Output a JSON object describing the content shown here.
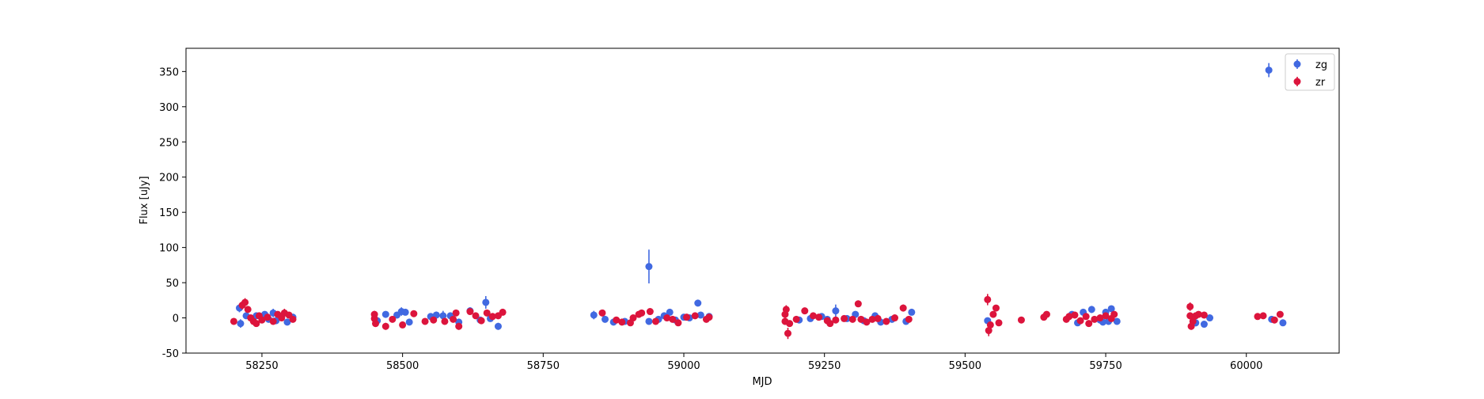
{
  "chart_data": {
    "type": "scatter",
    "title": "",
    "xlabel": "MJD",
    "ylabel": "Flux [uJy]",
    "xlim": [
      58115,
      60165
    ],
    "ylim": [
      -50,
      383
    ],
    "x_ticks": [
      58250,
      58500,
      58750,
      59000,
      59250,
      59500,
      59750,
      60000
    ],
    "y_ticks": [
      -50,
      0,
      50,
      100,
      150,
      200,
      250,
      300,
      350
    ],
    "grid": false,
    "legend_position": "top-right",
    "series": [
      {
        "name": "zg",
        "color": "#4169e1",
        "points": [
          [
            58210,
            14,
            6
          ],
          [
            58212,
            -8,
            6
          ],
          [
            58222,
            3,
            3
          ],
          [
            58240,
            3,
            3
          ],
          [
            58255,
            5,
            3
          ],
          [
            58262,
            -2,
            3
          ],
          [
            58270,
            7,
            6
          ],
          [
            58275,
            -4,
            4
          ],
          [
            58285,
            2,
            3
          ],
          [
            58295,
            -6,
            4
          ],
          [
            58305,
            1,
            3
          ],
          [
            58455,
            -4,
            5
          ],
          [
            58470,
            5,
            4
          ],
          [
            58490,
            4,
            4
          ],
          [
            58498,
            9,
            6
          ],
          [
            58505,
            8,
            4
          ],
          [
            58512,
            -6,
            4
          ],
          [
            58550,
            2,
            3
          ],
          [
            58560,
            4,
            5
          ],
          [
            58572,
            3,
            7
          ],
          [
            58585,
            3,
            4
          ],
          [
            58600,
            -6,
            4
          ],
          [
            58620,
            10,
            5
          ],
          [
            58638,
            -3,
            4
          ],
          [
            58648,
            22,
            9
          ],
          [
            58656,
            -1,
            4
          ],
          [
            58670,
            -12,
            5
          ],
          [
            58840,
            4,
            6
          ],
          [
            58860,
            -2,
            3
          ],
          [
            58875,
            -6,
            3
          ],
          [
            58895,
            -5,
            3
          ],
          [
            58938,
            73,
            24
          ],
          [
            58938,
            -5,
            4
          ],
          [
            58955,
            -2,
            3
          ],
          [
            58965,
            3,
            3
          ],
          [
            58975,
            8,
            4
          ],
          [
            58985,
            -3,
            3
          ],
          [
            59000,
            1,
            3
          ],
          [
            59010,
            0,
            3
          ],
          [
            59025,
            21,
            4
          ],
          [
            59030,
            4,
            3
          ],
          [
            59045,
            2,
            3
          ],
          [
            59205,
            -3,
            3
          ],
          [
            59225,
            -1,
            3
          ],
          [
            59245,
            2,
            3
          ],
          [
            59255,
            -2,
            3
          ],
          [
            59270,
            10,
            9
          ],
          [
            59290,
            -1,
            3
          ],
          [
            59305,
            5,
            3
          ],
          [
            59320,
            -4,
            3
          ],
          [
            59340,
            3,
            3
          ],
          [
            59350,
            -6,
            3
          ],
          [
            59370,
            -2,
            3
          ],
          [
            59395,
            -5,
            4
          ],
          [
            59405,
            8,
            3
          ],
          [
            59540,
            -4,
            4
          ],
          [
            59690,
            5,
            3
          ],
          [
            59700,
            -7,
            4
          ],
          [
            59710,
            8,
            4
          ],
          [
            59725,
            12,
            5
          ],
          [
            59740,
            -3,
            4
          ],
          [
            59745,
            -6,
            4
          ],
          [
            59750,
            8,
            4
          ],
          [
            59755,
            -5,
            4
          ],
          [
            59760,
            13,
            4
          ],
          [
            59770,
            -5,
            4
          ],
          [
            59910,
            -7,
            5
          ],
          [
            59925,
            -9,
            4
          ],
          [
            59935,
            0,
            3
          ],
          [
            60040,
            352,
            10
          ],
          [
            60045,
            -2,
            3
          ],
          [
            60065,
            -7,
            4
          ]
        ]
      },
      {
        "name": "zr",
        "color": "#dc143c",
        "points": [
          [
            58200,
            -5,
            3
          ],
          [
            58215,
            18,
            6
          ],
          [
            58220,
            22,
            6
          ],
          [
            58225,
            12,
            4
          ],
          [
            58230,
            0,
            3
          ],
          [
            58235,
            -5,
            3
          ],
          [
            58240,
            -8,
            3
          ],
          [
            58245,
            3,
            3
          ],
          [
            58250,
            -3,
            3
          ],
          [
            58260,
            1,
            3
          ],
          [
            58270,
            -5,
            3
          ],
          [
            58278,
            5,
            3
          ],
          [
            58285,
            0,
            3
          ],
          [
            58290,
            7,
            6
          ],
          [
            58298,
            4,
            3
          ],
          [
            58305,
            -2,
            3
          ],
          [
            58450,
            5,
            5
          ],
          [
            58450,
            -1,
            5
          ],
          [
            58452,
            -8,
            5
          ],
          [
            58470,
            -12,
            5
          ],
          [
            58482,
            -2,
            3
          ],
          [
            58500,
            -10,
            4
          ],
          [
            58520,
            6,
            3
          ],
          [
            58540,
            -5,
            3
          ],
          [
            58555,
            -3,
            3
          ],
          [
            58575,
            -5,
            3
          ],
          [
            58590,
            -2,
            3
          ],
          [
            58595,
            7,
            4
          ],
          [
            58600,
            -12,
            5
          ],
          [
            58620,
            9,
            4
          ],
          [
            58630,
            3,
            3
          ],
          [
            58640,
            -4,
            3
          ],
          [
            58650,
            7,
            4
          ],
          [
            58660,
            2,
            3
          ],
          [
            58670,
            3,
            3
          ],
          [
            58678,
            8,
            4
          ],
          [
            58855,
            7,
            4
          ],
          [
            58880,
            -3,
            3
          ],
          [
            58890,
            -6,
            3
          ],
          [
            58905,
            -7,
            3
          ],
          [
            58910,
            0,
            3
          ],
          [
            58920,
            5,
            3
          ],
          [
            58925,
            7,
            3
          ],
          [
            58940,
            9,
            4
          ],
          [
            58950,
            -5,
            3
          ],
          [
            58970,
            0,
            3
          ],
          [
            58980,
            -2,
            3
          ],
          [
            58990,
            -7,
            3
          ],
          [
            59005,
            1,
            3
          ],
          [
            59020,
            3,
            3
          ],
          [
            59040,
            -2,
            3
          ],
          [
            59045,
            1,
            3
          ],
          [
            59180,
            5,
            5
          ],
          [
            59180,
            -5,
            5
          ],
          [
            59182,
            12,
            6
          ],
          [
            59185,
            -22,
            8
          ],
          [
            59188,
            -8,
            4
          ],
          [
            59200,
            -2,
            3
          ],
          [
            59215,
            10,
            4
          ],
          [
            59230,
            3,
            3
          ],
          [
            59240,
            1,
            3
          ],
          [
            59255,
            -4,
            3
          ],
          [
            59260,
            -8,
            3
          ],
          [
            59270,
            -3,
            3
          ],
          [
            59285,
            -1,
            3
          ],
          [
            59300,
            -2,
            3
          ],
          [
            59310,
            20,
            4
          ],
          [
            59315,
            -2,
            3
          ],
          [
            59325,
            -6,
            3
          ],
          [
            59335,
            -2,
            3
          ],
          [
            59345,
            -1,
            3
          ],
          [
            59360,
            -5,
            3
          ],
          [
            59375,
            0,
            3
          ],
          [
            59390,
            14,
            5
          ],
          [
            59400,
            -2,
            3
          ],
          [
            59540,
            26,
            8
          ],
          [
            59542,
            -18,
            8
          ],
          [
            59545,
            -10,
            4
          ],
          [
            59550,
            5,
            4
          ],
          [
            59555,
            14,
            4
          ],
          [
            59560,
            -7,
            3
          ],
          [
            59600,
            -3,
            3
          ],
          [
            59640,
            1,
            3
          ],
          [
            59645,
            5,
            3
          ],
          [
            59680,
            -2,
            3
          ],
          [
            59685,
            2,
            3
          ],
          [
            59695,
            4,
            3
          ],
          [
            59705,
            -4,
            3
          ],
          [
            59715,
            2,
            3
          ],
          [
            59720,
            -8,
            4
          ],
          [
            59730,
            -2,
            3
          ],
          [
            59740,
            0,
            3
          ],
          [
            59750,
            3,
            3
          ],
          [
            59760,
            -1,
            3
          ],
          [
            59765,
            5,
            3
          ],
          [
            59900,
            16,
            6
          ],
          [
            59900,
            3,
            5
          ],
          [
            59902,
            -12,
            5
          ],
          [
            59905,
            -5,
            3
          ],
          [
            59910,
            3,
            3
          ],
          [
            59915,
            5,
            3
          ],
          [
            59925,
            4,
            3
          ],
          [
            60020,
            2,
            3
          ],
          [
            60030,
            3,
            3
          ],
          [
            60050,
            -3,
            3
          ],
          [
            60060,
            5,
            3
          ]
        ]
      }
    ]
  }
}
